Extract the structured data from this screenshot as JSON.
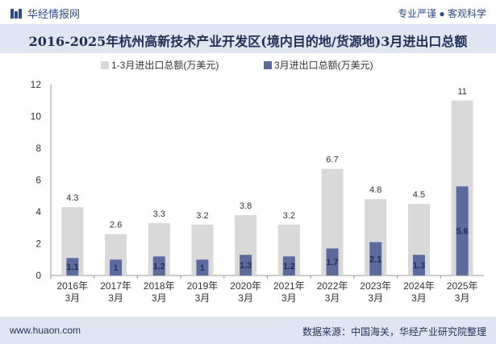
{
  "header": {
    "brand": "华经情报网",
    "slogan": "专业严谨 ● 客观科学"
  },
  "footer": {
    "site": "www.huaon.com",
    "source": "数据来源：中国海关，华经产业研究院整理"
  },
  "colors": {
    "series1": "#d9d9d9",
    "series2": "#5b6b9c",
    "title_bg": "#dfe6f2",
    "brand": "#2b4a8a"
  },
  "chart_data": {
    "type": "bar",
    "title": "2016-2025年杭州高新技术产业开发区(境内目的地/货源地)3月进出口总额",
    "categories": [
      "2016年\n3月",
      "2017年\n3月",
      "2018年\n3月",
      "2019年\n3月",
      "2020年\n3月",
      "2021年\n3月",
      "2022年\n3月",
      "2023年\n3月",
      "2024年\n3月",
      "2025年\n3月"
    ],
    "series": [
      {
        "name": "1-3月进出口总额(万美元)",
        "values": [
          4.3,
          2.6,
          3.3,
          3.2,
          3.8,
          3.2,
          6.7,
          4.8,
          4.5,
          11
        ]
      },
      {
        "name": "3月进出口总额(万美元)",
        "values": [
          1.1,
          1,
          1.2,
          1,
          1.3,
          1.2,
          1.7,
          2.1,
          1.3,
          5.6
        ]
      }
    ],
    "yticks": [
      0,
      2,
      4,
      6,
      8,
      10,
      12
    ],
    "ylim": [
      0,
      12
    ],
    "legend": "top-center",
    "grid": false
  }
}
